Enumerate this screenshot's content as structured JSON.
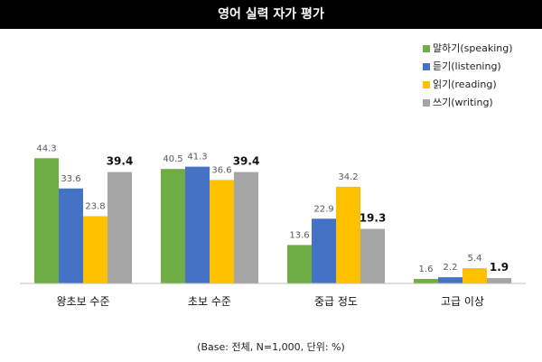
{
  "chart_data": {
    "type": "bar",
    "title": "영어 실력 자가 평가",
    "categories": [
      "왕초보 수준",
      "초보 수준",
      "중급 정도",
      "고급 이상"
    ],
    "series": [
      {
        "name": "말하기(speaking)",
        "color": "#70ad47",
        "values": [
          44.3,
          40.5,
          13.6,
          1.6
        ]
      },
      {
        "name": "듣기(listening)",
        "color": "#4472c4",
        "values": [
          33.6,
          41.3,
          22.9,
          2.2
        ]
      },
      {
        "name": "읽기(reading)",
        "color": "#ffc000",
        "values": [
          23.8,
          36.6,
          34.2,
          5.4
        ]
      },
      {
        "name": "쓰기(writing)",
        "color": "#a5a5a5",
        "values": [
          39.4,
          39.4,
          19.3,
          1.9
        ]
      }
    ],
    "ylim": [
      0,
      50
    ],
    "grid": false,
    "legend_position": "top-right",
    "note": "(Base: 전체, N=1,000, 단위: %)"
  }
}
